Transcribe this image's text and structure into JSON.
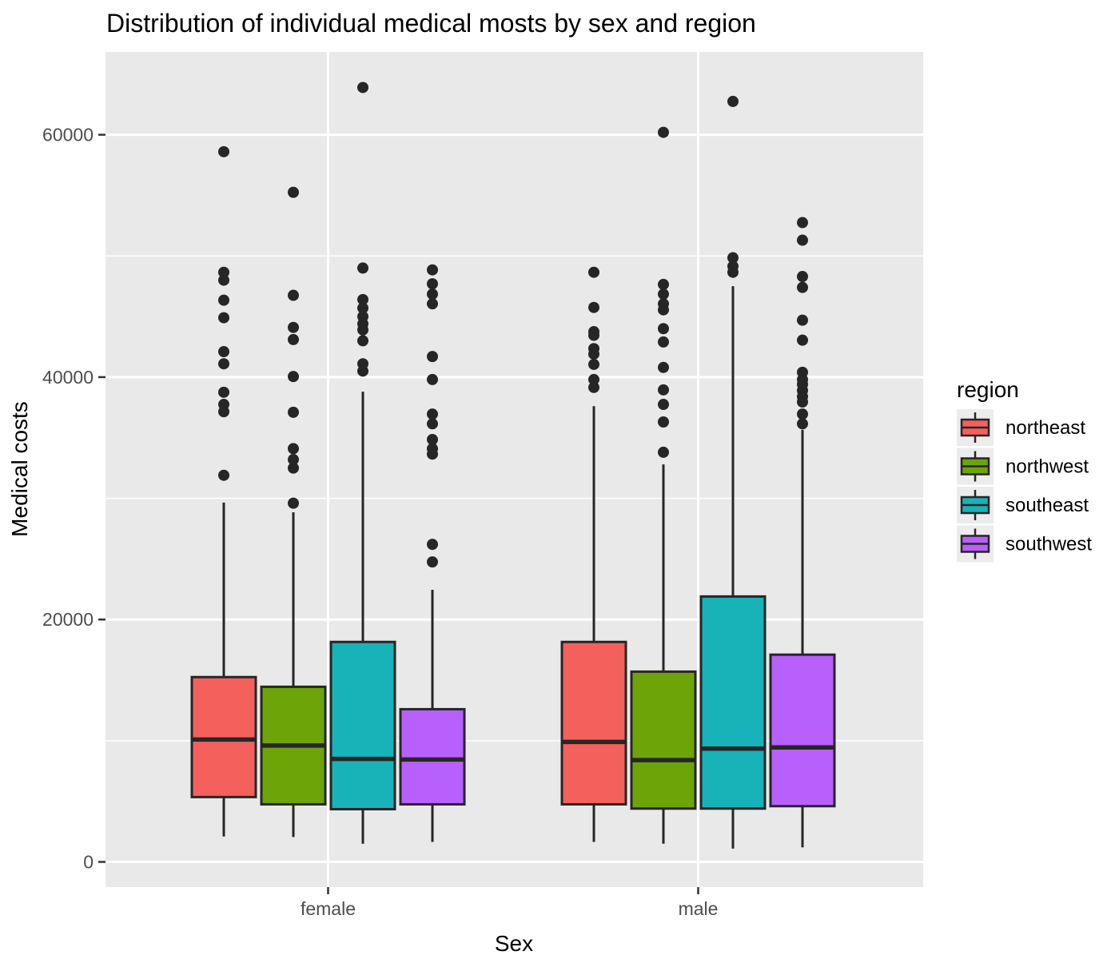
{
  "chart_data": {
    "type": "boxplot",
    "title": "Distribution of individual medical mosts by sex and region",
    "xlabel": "Sex",
    "ylabel": "Medical costs",
    "categories": [
      "female",
      "male"
    ],
    "y_ticks": [
      0,
      20000,
      40000,
      60000
    ],
    "y_tick_labels": [
      "0",
      "20000",
      "40000",
      "60000"
    ],
    "y_minor_ticks": [
      10000,
      30000,
      50000
    ],
    "ylim": [
      -2000,
      67000
    ],
    "grid": "on",
    "panel_background": "#E9E9E9",
    "gridline_color": "#FFFFFF",
    "box_outline_color": "#262626",
    "outlier_color": "#262626",
    "tick_mark_color": "#333333",
    "legend": {
      "title": "region",
      "position": "right",
      "key_background": "#ECECEC",
      "items": [
        "northeast",
        "northwest",
        "southeast",
        "southwest"
      ]
    },
    "series": [
      {
        "name": "northeast",
        "color": "#F4605C",
        "boxes": [
          {
            "category": "female",
            "whisker_low": 2100,
            "q1": 5350,
            "median": 10100,
            "q3": 15250,
            "whisker_high": 29650,
            "outliers": [
              58600,
              48650,
              48000,
              46350,
              44900,
              42100,
              41100,
              38750,
              37750,
              37150,
              31900
            ]
          },
          {
            "category": "male",
            "whisker_low": 1650,
            "q1": 4750,
            "median": 9900,
            "q3": 18150,
            "whisker_high": 37600,
            "outliers": [
              48650,
              45750,
              43750,
              43450,
              42350,
              41900,
              41050,
              39800,
              39150
            ]
          }
        ]
      },
      {
        "name": "northwest",
        "color": "#6DA408",
        "boxes": [
          {
            "category": "female",
            "whisker_low": 2050,
            "q1": 4750,
            "median": 9600,
            "q3": 14450,
            "whisker_high": 28850,
            "outliers": [
              55250,
              46750,
              44100,
              43100,
              40050,
              37100,
              34100,
              33200,
              32500,
              29600
            ]
          },
          {
            "category": "male",
            "whisker_low": 1500,
            "q1": 4400,
            "median": 8400,
            "q3": 15700,
            "whisker_high": 32800,
            "outliers": [
              60200,
              47650,
              46850,
              46050,
              45550,
              44000,
              42900,
              40800,
              38950,
              37750,
              36300,
              33800
            ]
          }
        ]
      },
      {
        "name": "southeast",
        "color": "#17B3B8",
        "boxes": [
          {
            "category": "female",
            "whisker_low": 1500,
            "q1": 4350,
            "median": 8500,
            "q3": 18150,
            "whisker_high": 38800,
            "outliers": [
              63900,
              49000,
              46400,
              45700,
              45000,
              44400,
              43900,
              43000,
              41100,
              40500
            ]
          },
          {
            "category": "male",
            "whisker_low": 1100,
            "q1": 4400,
            "median": 9350,
            "q3": 21900,
            "whisker_high": 47500,
            "outliers": [
              62750,
              49850,
              49150,
              48650
            ]
          }
        ]
      },
      {
        "name": "southwest",
        "color": "#B860FB",
        "boxes": [
          {
            "category": "female",
            "whisker_low": 1650,
            "q1": 4750,
            "median": 8450,
            "q3": 12600,
            "whisker_high": 22450,
            "outliers": [
              48850,
              47700,
              46850,
              46050,
              41700,
              39800,
              36950,
              36150,
              34850,
              34100,
              33650,
              26200,
              24750
            ]
          },
          {
            "category": "male",
            "whisker_low": 1200,
            "q1": 4600,
            "median": 9450,
            "q3": 17100,
            "whisker_high": 35650,
            "outliers": [
              52750,
              51300,
              48300,
              47400,
              44700,
              43050,
              40400,
              39800,
              39400,
              38900,
              38400,
              37950,
              36950,
              36150
            ]
          }
        ]
      }
    ]
  }
}
